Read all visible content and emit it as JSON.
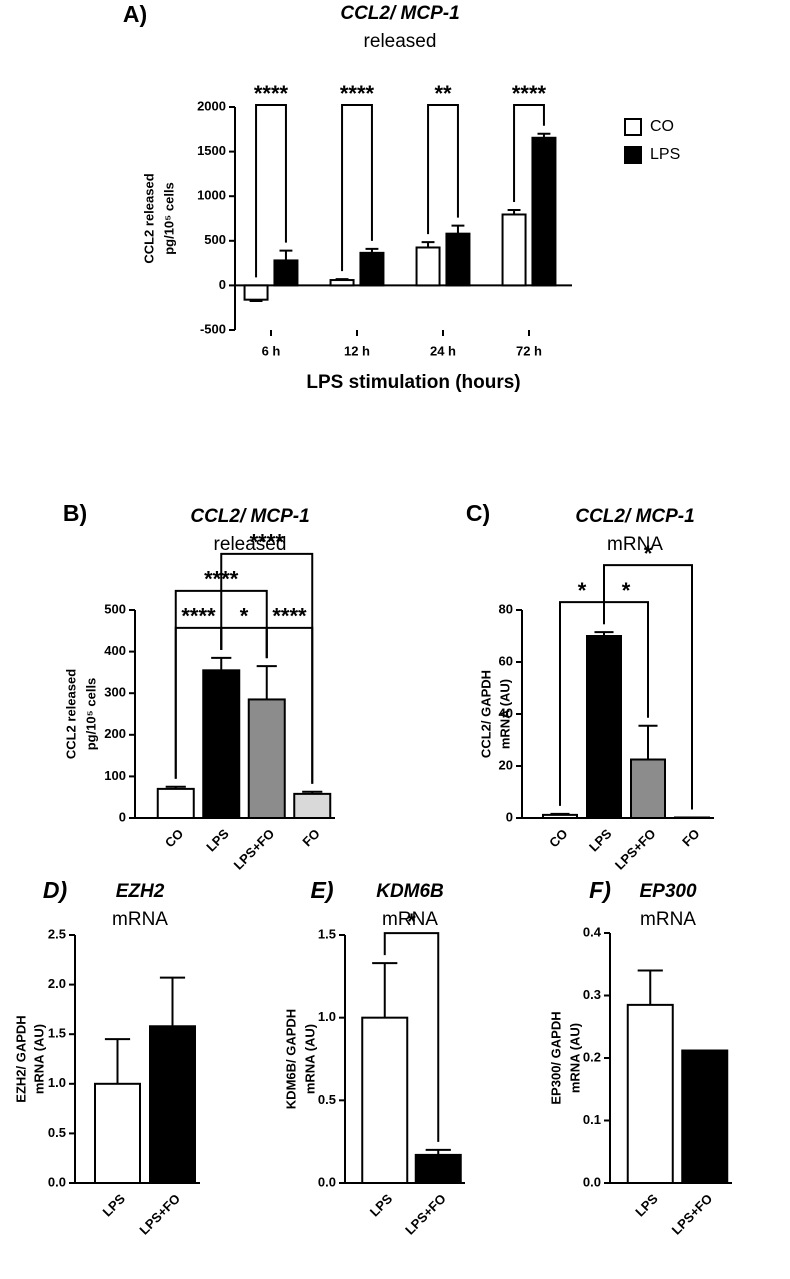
{
  "chart_data": [
    {
      "type": "bar",
      "panel": "A)",
      "title": "CCL2/ MCP-1",
      "subtitle": "released",
      "ylabel": [
        "CCL2 released",
        "pg/10⁵ cells"
      ],
      "xlabel": "LPS stimulation (hours)",
      "categories": [
        "6 h",
        "12 h",
        "24 h",
        "72 h"
      ],
      "series": [
        {
          "name": "CO",
          "color": "#ffffff",
          "values": [
            -160,
            60,
            425,
            795
          ],
          "errors": [
            15,
            10,
            60,
            50
          ]
        },
        {
          "name": "LPS",
          "color": "#000000",
          "values": [
            280,
            365,
            580,
            1655
          ],
          "errors": [
            110,
            45,
            90,
            45
          ]
        }
      ],
      "significance": [
        "****",
        "****",
        "**",
        "****"
      ],
      "ylim": [
        -500,
        2000
      ],
      "yticks": [
        -500,
        0,
        500,
        1000,
        1500,
        2000
      ],
      "legend": "right"
    },
    {
      "type": "bar",
      "panel": "B)",
      "title": "CCL2/ MCP-1",
      "subtitle": "released",
      "ylabel": [
        "CCL2 released",
        "pg/10⁵ cells"
      ],
      "categories": [
        "CO",
        "LPS",
        "LPS+FO",
        "FO"
      ],
      "values": [
        70,
        355,
        285,
        58
      ],
      "errors": [
        5,
        30,
        80,
        5
      ],
      "colors": [
        "#ffffff",
        "#000000",
        "#8c8c8c",
        "#d9d9d9"
      ],
      "comparisons": [
        {
          "between": [
            0,
            1
          ],
          "label": "****"
        },
        {
          "between": [
            1,
            2
          ],
          "label": "*"
        },
        {
          "between": [
            2,
            3
          ],
          "label": "****"
        },
        {
          "between": [
            0,
            2
          ],
          "label": "****"
        },
        {
          "between": [
            1,
            3
          ],
          "label": "****"
        }
      ],
      "ylim": [
        0,
        500
      ],
      "yticks": [
        0,
        100,
        200,
        300,
        400,
        500
      ]
    },
    {
      "type": "bar",
      "panel": "C)",
      "title": "CCL2/ MCP-1",
      "subtitle": "mRNA",
      "ylabel": [
        "CCL2/ GAPDH",
        "mRNA (AU)"
      ],
      "categories": [
        "CO",
        "LPS",
        "LPS+FO",
        "FO"
      ],
      "values": [
        1.2,
        70,
        22.5,
        0.2
      ],
      "errors": [
        0.4,
        1.5,
        13,
        0
      ],
      "colors": [
        "#ffffff",
        "#000000",
        "#8c8c8c",
        "#d9d9d9"
      ],
      "comparisons": [
        {
          "between": [
            0,
            1
          ],
          "label": "*"
        },
        {
          "between": [
            1,
            2
          ],
          "label": "*"
        },
        {
          "between": [
            1,
            3
          ],
          "label": "*"
        }
      ],
      "ylim": [
        0,
        80
      ],
      "yticks": [
        0,
        20,
        40,
        60,
        80
      ]
    },
    {
      "type": "bar",
      "panel": "D)",
      "title": "EZH2",
      "subtitle": "mRNA",
      "ylabel": [
        "EZH2/ GAPDH",
        "mRNA (AU)"
      ],
      "categories": [
        "LPS",
        "LPS+FO"
      ],
      "values": [
        1.0,
        1.58
      ],
      "errors": [
        0.45,
        0.49
      ],
      "colors": [
        "#ffffff",
        "#000000"
      ],
      "ylim": [
        0,
        2.5
      ],
      "yticks": [
        {
          "value": 0,
          "label": "0.0"
        },
        0.5,
        {
          "value": 1,
          "label": "1.0"
        },
        1.5,
        {
          "value": 2,
          "label": "2.0"
        },
        2.5
      ]
    },
    {
      "type": "bar",
      "panel": "E)",
      "title": "KDM6B",
      "subtitle": "mRNA",
      "ylabel": [
        "KDM6B/ GAPDH",
        "mRNA (AU)"
      ],
      "categories": [
        "LPS",
        "LPS+FO"
      ],
      "values": [
        1.0,
        0.17
      ],
      "errors": [
        0.33,
        0.03
      ],
      "colors": [
        "#ffffff",
        "#000000"
      ],
      "comparisons": [
        {
          "between": [
            0,
            1
          ],
          "label": "*"
        }
      ],
      "ylim": [
        0,
        1.5
      ],
      "yticks": [
        {
          "value": 0,
          "label": "0.0"
        },
        0.5,
        {
          "value": 1,
          "label": "1.0"
        },
        1.5
      ]
    },
    {
      "type": "bar",
      "panel": "F)",
      "title": "EP300",
      "subtitle": "mRNA",
      "ylabel": [
        "EP300/ GAPDH",
        "mRNA (AU)"
      ],
      "categories": [
        "LPS",
        "LPS+FO"
      ],
      "values": [
        0.285,
        0.212
      ],
      "errors": [
        0.055,
        0
      ],
      "colors": [
        "#ffffff",
        "#000000"
      ],
      "ylim": [
        0,
        0.4
      ],
      "yticks": [
        {
          "value": 0,
          "label": "0.0"
        },
        0.1,
        0.2,
        0.3,
        0.4
      ]
    }
  ]
}
